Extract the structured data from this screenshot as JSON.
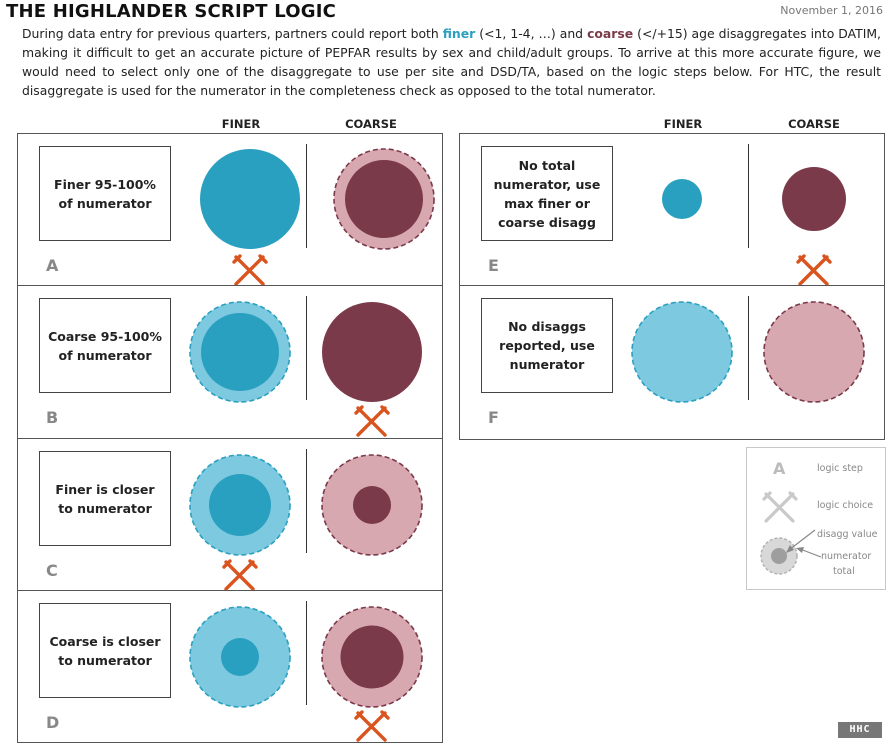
{
  "header": {
    "title": "THE HIGHLANDER SCRIPT LOGIC",
    "date": "November 1, 2016"
  },
  "intro": {
    "part1": "During data entry for previous quarters, partners could report both ",
    "finer": "finer",
    "part2": " (<1, 1-4, …) and ",
    "coarse": "coarse",
    "part3": " (</+15) age disaggregates into DATIM, making it difficult to get an accurate picture of PEPFAR results by sex and child/adult groups. To arrive at this more accurate figure, we would need to select only one of the disaggregate to use per site and DSD/TA, based on the logic steps below. For HTC, the result disaggregate is used for the numerator in the completeness check as opposed to the total numerator."
  },
  "column_headers": {
    "left_finer": "FINER",
    "left_coarse": "COARSE",
    "right_finer": "FINER",
    "right_coarse": "COARSE"
  },
  "colors": {
    "finer_value": "#2AA0C0",
    "finer_total": "#7DC9E0",
    "coarse_value": "#7B3A4A",
    "coarse_total": "#D8A8B0",
    "choice_x": "#D9541E",
    "legend_gray": "#BDBDBD"
  },
  "panels": [
    {
      "letter": "A",
      "text": "Finer 95-100% of numerator",
      "choice": "finer",
      "finer_value_ratio": 1.0,
      "finer_has_total": false,
      "coarse_value_ratio": 0.78,
      "coarse_has_total": true
    },
    {
      "letter": "B",
      "text": "Coarse 95-100% of numerator",
      "choice": "coarse",
      "finer_value_ratio": 0.78,
      "finer_has_total": true,
      "coarse_value_ratio": 1.0,
      "coarse_has_total": false
    },
    {
      "letter": "C",
      "text": "Finer is closer to numerator",
      "choice": "finer",
      "finer_value_ratio": 0.62,
      "finer_has_total": true,
      "coarse_value_ratio": 0.38,
      "coarse_has_total": true
    },
    {
      "letter": "D",
      "text": "Coarse is closer to numerator",
      "choice": "coarse",
      "finer_value_ratio": 0.38,
      "finer_has_total": true,
      "coarse_value_ratio": 0.63,
      "coarse_has_total": true
    },
    {
      "letter": "E",
      "text": "No total numerator, use max finer or coarse disagg",
      "choice": "coarse",
      "finer_value_ratio": 0.4,
      "finer_has_total": false,
      "coarse_value_ratio": 0.64,
      "coarse_has_total": false
    },
    {
      "letter": "F",
      "text": "No disaggs reported, use numerator",
      "choice": "none",
      "finer_value_ratio": 0,
      "finer_has_total": true,
      "coarse_value_ratio": 0,
      "coarse_has_total": true
    }
  ],
  "legend": {
    "letter": "A",
    "logic_step": "logic step",
    "logic_choice": "logic choice",
    "disagg_value": "disagg value",
    "numerator_total_1": "numerator",
    "numerator_total_2": "total"
  },
  "logo": {
    "text": "HHC"
  }
}
